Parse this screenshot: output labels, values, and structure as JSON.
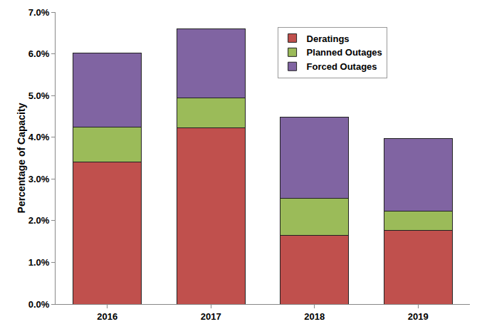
{
  "chart_data": {
    "type": "bar",
    "stacked": true,
    "categories": [
      "2016",
      "2017",
      "2018",
      "2019"
    ],
    "series": [
      {
        "name": "Deratings",
        "color": "#c0504d",
        "values": [
          3.4,
          4.23,
          1.65,
          1.77
        ]
      },
      {
        "name": "Planned Outages",
        "color": "#9bbb59",
        "values": [
          0.85,
          0.72,
          0.88,
          0.45
        ]
      },
      {
        "name": "Forced Outages",
        "color": "#8064a2",
        "values": [
          1.77,
          1.65,
          1.95,
          1.75
        ]
      }
    ],
    "y_label": "Percentage of Capacity",
    "ylim": [
      0,
      7
    ],
    "yticks": [
      {
        "value": 0,
        "label": "0.0%"
      },
      {
        "value": 1,
        "label": "1.0%"
      },
      {
        "value": 2,
        "label": "2.0%"
      },
      {
        "value": 3,
        "label": "3.0%"
      },
      {
        "value": 4,
        "label": "4.0%"
      },
      {
        "value": 5,
        "label": "5.0%"
      },
      {
        "value": 6,
        "label": "6.0%"
      },
      {
        "value": 7,
        "label": "7.0%"
      }
    ],
    "grid": false,
    "legend": "upper right"
  }
}
